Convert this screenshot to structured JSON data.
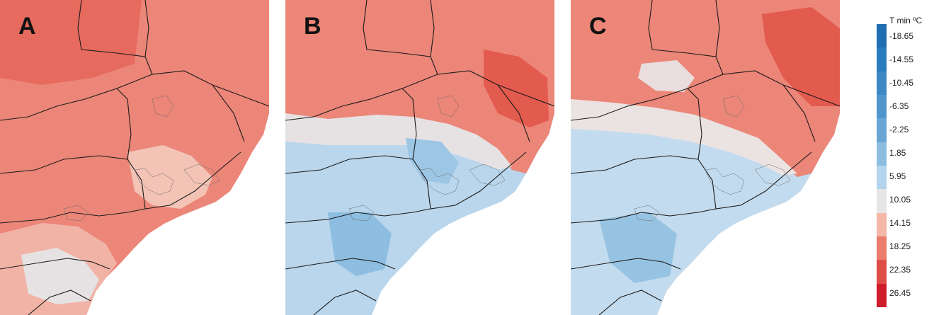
{
  "panels": [
    {
      "label": "A",
      "scenario": "warm"
    },
    {
      "label": "B",
      "scenario": "cold"
    },
    {
      "label": "C",
      "scenario": "mixed"
    }
  ],
  "legend": {
    "title": "T min ºC",
    "ticks": [
      "-18.65",
      "-14.55",
      "-10.45",
      "-6.35",
      "-2.25",
      "1.85",
      "5.95",
      "10.05",
      "14.15",
      "18.25",
      "22.35",
      "26.45"
    ],
    "colors": [
      "#1f6fb0",
      "#2b7cbc",
      "#3c88c4",
      "#5096cc",
      "#6aa6d4",
      "#8cbde0",
      "#b3d4ec",
      "#e6e6e6",
      "#f5b8a8",
      "#ec7c6c",
      "#df4d47",
      "#cf1d2c"
    ]
  },
  "palette": {
    "warm": "#ec8678",
    "warm_light": "#f4b5a6",
    "warm_dark": "#e36457",
    "neutral": "#ece9e8",
    "cold": "#b9d6ec",
    "cold_dark": "#8dbde0",
    "sea": "#ffffff",
    "border": "#1b1b1b"
  }
}
